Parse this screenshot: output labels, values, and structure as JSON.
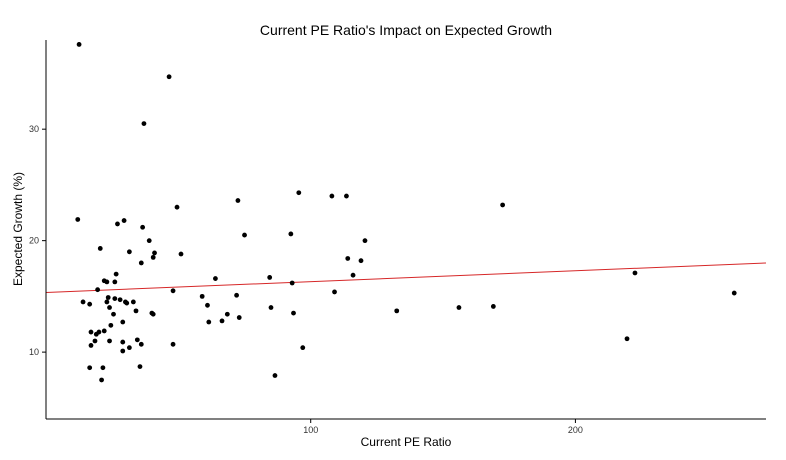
{
  "chart_data": {
    "type": "scatter",
    "title": "Current PE Ratio's Impact on Expected Growth",
    "xlabel": "Current PE Ratio",
    "ylabel": "Expected Growth (%)",
    "xlim": [
      0,
      272
    ],
    "ylim": [
      4,
      38
    ],
    "xticks": [
      100,
      200
    ],
    "yticks": [
      10,
      20,
      30
    ],
    "grid": false,
    "point_color": "#000000",
    "trend_color": "#d62728",
    "trendline": {
      "x": [
        0,
        272
      ],
      "y": [
        15.35,
        18.0
      ]
    },
    "points": [
      {
        "x": 12.5,
        "y": 37.6
      },
      {
        "x": 12.0,
        "y": 21.9
      },
      {
        "x": 14.0,
        "y": 14.5
      },
      {
        "x": 16.5,
        "y": 14.3
      },
      {
        "x": 17.0,
        "y": 11.8
      },
      {
        "x": 17.0,
        "y": 10.6
      },
      {
        "x": 16.5,
        "y": 8.6
      },
      {
        "x": 18.5,
        "y": 11.0
      },
      {
        "x": 19.0,
        "y": 11.6
      },
      {
        "x": 20.0,
        "y": 11.8
      },
      {
        "x": 19.5,
        "y": 15.6
      },
      {
        "x": 20.5,
        "y": 19.3
      },
      {
        "x": 21.5,
        "y": 8.6
      },
      {
        "x": 21.0,
        "y": 7.5
      },
      {
        "x": 22.0,
        "y": 11.9
      },
      {
        "x": 22.0,
        "y": 16.4
      },
      {
        "x": 23.0,
        "y": 16.3
      },
      {
        "x": 23.0,
        "y": 14.5
      },
      {
        "x": 23.5,
        "y": 14.9
      },
      {
        "x": 24.0,
        "y": 14.0
      },
      {
        "x": 24.0,
        "y": 11.0
      },
      {
        "x": 24.5,
        "y": 12.4
      },
      {
        "x": 25.5,
        "y": 13.4
      },
      {
        "x": 26.0,
        "y": 14.8
      },
      {
        "x": 26.0,
        "y": 16.3
      },
      {
        "x": 26.5,
        "y": 17.0
      },
      {
        "x": 27.0,
        "y": 21.5
      },
      {
        "x": 28.0,
        "y": 14.7
      },
      {
        "x": 29.0,
        "y": 12.7
      },
      {
        "x": 29.0,
        "y": 10.1
      },
      {
        "x": 29.0,
        "y": 10.9
      },
      {
        "x": 29.5,
        "y": 21.8
      },
      {
        "x": 30.0,
        "y": 14.5
      },
      {
        "x": 30.5,
        "y": 14.4
      },
      {
        "x": 31.5,
        "y": 10.4
      },
      {
        "x": 31.5,
        "y": 19.0
      },
      {
        "x": 33.0,
        "y": 14.5
      },
      {
        "x": 34.0,
        "y": 13.7
      },
      {
        "x": 34.5,
        "y": 11.1
      },
      {
        "x": 35.5,
        "y": 8.7
      },
      {
        "x": 36.0,
        "y": 10.7
      },
      {
        "x": 36.0,
        "y": 18.0
      },
      {
        "x": 36.5,
        "y": 21.2
      },
      {
        "x": 37.0,
        "y": 30.5
      },
      {
        "x": 39.0,
        "y": 20.0
      },
      {
        "x": 40.0,
        "y": 13.5
      },
      {
        "x": 40.5,
        "y": 13.4
      },
      {
        "x": 40.5,
        "y": 18.5
      },
      {
        "x": 41.0,
        "y": 18.9
      },
      {
        "x": 46.5,
        "y": 34.7
      },
      {
        "x": 48.0,
        "y": 15.5
      },
      {
        "x": 48.0,
        "y": 10.7
      },
      {
        "x": 49.5,
        "y": 23.0
      },
      {
        "x": 51.0,
        "y": 18.8
      },
      {
        "x": 59.0,
        "y": 15.0
      },
      {
        "x": 61.0,
        "y": 14.2
      },
      {
        "x": 61.5,
        "y": 12.7
      },
      {
        "x": 64.0,
        "y": 16.6
      },
      {
        "x": 66.5,
        "y": 12.8
      },
      {
        "x": 68.5,
        "y": 13.4
      },
      {
        "x": 72.0,
        "y": 15.1
      },
      {
        "x": 72.5,
        "y": 23.6
      },
      {
        "x": 73.0,
        "y": 13.1
      },
      {
        "x": 75.0,
        "y": 20.5
      },
      {
        "x": 84.5,
        "y": 16.7
      },
      {
        "x": 85.0,
        "y": 14.0
      },
      {
        "x": 86.5,
        "y": 7.9
      },
      {
        "x": 92.5,
        "y": 20.6
      },
      {
        "x": 93.0,
        "y": 16.2
      },
      {
        "x": 93.5,
        "y": 13.5
      },
      {
        "x": 95.5,
        "y": 24.3
      },
      {
        "x": 97.0,
        "y": 10.4
      },
      {
        "x": 108.0,
        "y": 24.0
      },
      {
        "x": 109.0,
        "y": 15.4
      },
      {
        "x": 113.5,
        "y": 24.0
      },
      {
        "x": 114.0,
        "y": 18.4
      },
      {
        "x": 116.0,
        "y": 16.9
      },
      {
        "x": 119.0,
        "y": 18.2
      },
      {
        "x": 120.5,
        "y": 20.0
      },
      {
        "x": 132.5,
        "y": 13.7
      },
      {
        "x": 156.0,
        "y": 14.0
      },
      {
        "x": 169.0,
        "y": 14.1
      },
      {
        "x": 172.5,
        "y": 23.2
      },
      {
        "x": 219.5,
        "y": 11.2
      },
      {
        "x": 222.5,
        "y": 17.1
      },
      {
        "x": 260.0,
        "y": 15.3
      }
    ]
  }
}
